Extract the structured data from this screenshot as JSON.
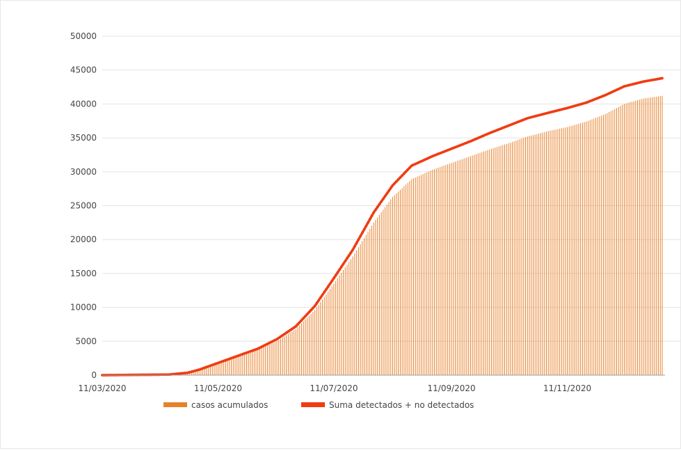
{
  "chart_data": {
    "type": "bar",
    "x_start": "11/03/2020",
    "x_end": "31/12/2020",
    "x_ticks": [
      "11/03/2020",
      "11/05/2020",
      "11/07/2020",
      "11/09/2020",
      "11/11/2020"
    ],
    "y_ticks": [
      "0",
      "5000",
      "10000",
      "15000",
      "20000",
      "25000",
      "30000",
      "35000",
      "40000",
      "45000",
      "50000"
    ],
    "ylim": [
      0,
      50000
    ],
    "grid": true,
    "legend_position": "bottom",
    "series": [
      {
        "name": "casos acumulados",
        "kind": "bar",
        "color": "#e8812c",
        "points": [
          [
            "11/03/2020",
            0
          ],
          [
            "15/04/2020",
            50
          ],
          [
            "25/04/2020",
            250
          ],
          [
            "01/05/2020",
            700
          ],
          [
            "11/05/2020",
            1700
          ],
          [
            "21/05/2020",
            2600
          ],
          [
            "01/06/2020",
            3700
          ],
          [
            "11/06/2020",
            5000
          ],
          [
            "21/06/2020",
            6800
          ],
          [
            "01/07/2020",
            9600
          ],
          [
            "11/07/2020",
            13500
          ],
          [
            "21/07/2020",
            17500
          ],
          [
            "01/08/2020",
            22500
          ],
          [
            "11/08/2020",
            26300
          ],
          [
            "21/08/2020",
            28900
          ],
          [
            "01/09/2020",
            30300
          ],
          [
            "11/09/2020",
            31300
          ],
          [
            "21/09/2020",
            32300
          ],
          [
            "01/10/2020",
            33300
          ],
          [
            "11/10/2020",
            34200
          ],
          [
            "21/10/2020",
            35200
          ],
          [
            "01/11/2020",
            36000
          ],
          [
            "11/11/2020",
            36600
          ],
          [
            "21/11/2020",
            37400
          ],
          [
            "01/12/2020",
            38500
          ],
          [
            "11/12/2020",
            40000
          ],
          [
            "21/12/2020",
            40800
          ],
          [
            "31/12/2020",
            41200
          ]
        ]
      },
      {
        "name": "Suma detectados + no detectados",
        "kind": "line",
        "color": "#f03c12",
        "points": [
          [
            "11/03/2020",
            0
          ],
          [
            "15/04/2020",
            80
          ],
          [
            "25/04/2020",
            350
          ],
          [
            "01/05/2020",
            800
          ],
          [
            "11/05/2020",
            1800
          ],
          [
            "21/05/2020",
            2800
          ],
          [
            "01/06/2020",
            3900
          ],
          [
            "11/06/2020",
            5300
          ],
          [
            "21/06/2020",
            7200
          ],
          [
            "01/07/2020",
            10200
          ],
          [
            "11/07/2020",
            14300
          ],
          [
            "21/07/2020",
            18500
          ],
          [
            "01/08/2020",
            24000
          ],
          [
            "11/08/2020",
            28000
          ],
          [
            "21/08/2020",
            30900
          ],
          [
            "01/09/2020",
            32300
          ],
          [
            "11/09/2020",
            33400
          ],
          [
            "21/09/2020",
            34500
          ],
          [
            "01/10/2020",
            35700
          ],
          [
            "11/10/2020",
            36800
          ],
          [
            "21/10/2020",
            37900
          ],
          [
            "01/11/2020",
            38700
          ],
          [
            "11/11/2020",
            39400
          ],
          [
            "21/11/2020",
            40200
          ],
          [
            "01/12/2020",
            41300
          ],
          [
            "11/12/2020",
            42600
          ],
          [
            "21/12/2020",
            43300
          ],
          [
            "31/12/2020",
            43800
          ]
        ]
      }
    ]
  }
}
